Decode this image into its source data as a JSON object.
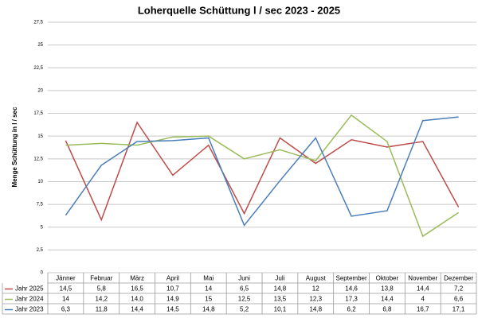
{
  "chart_data": {
    "type": "line",
    "title": "Loherquelle Schüttung l / sec 2023 - 2025",
    "y_label": "Menge Schüttung in l / sec",
    "categories": [
      "Jänner",
      "Februar",
      "März",
      "April",
      "Mai",
      "Juni",
      "Juli",
      "August",
      "September",
      "Oktober",
      "November",
      "Dezember"
    ],
    "series": [
      {
        "name": "Jahr 2025",
        "color": "#be4b48",
        "values": [
          14.5,
          5.8,
          16.5,
          10.7,
          14,
          6.5,
          14.8,
          12,
          14.6,
          13.8,
          14.4,
          7.2
        ],
        "value_labels": [
          "14,5",
          "5,8",
          "16,5",
          "10,7",
          "14",
          "6,5",
          "14,8",
          "12",
          "14,6",
          "13,8",
          "14,4",
          "7,2"
        ]
      },
      {
        "name": "Jahr 2024",
        "color": "#9bbb59",
        "values": [
          14,
          14.2,
          14,
          14.9,
          15,
          12.5,
          13.5,
          12.3,
          17.3,
          14.4,
          4,
          6.6
        ],
        "value_labels": [
          "14",
          "14,2",
          "14,0",
          "14,9",
          "15",
          "12,5",
          "13,5",
          "12,3",
          "17,3",
          "14,4",
          "4",
          "6,6"
        ]
      },
      {
        "name": "Jahr 2023",
        "color": "#4a7ebb",
        "values": [
          6.3,
          11.8,
          14.4,
          14.5,
          14.8,
          5.2,
          10.1,
          14.8,
          6.2,
          6.8,
          16.7,
          17.1
        ],
        "value_labels": [
          "6,3",
          "11,8",
          "14,4",
          "14,5",
          "14,8",
          "5,2",
          "10,1",
          "14,8",
          "6,2",
          "6,8",
          "16,7",
          "17,1"
        ]
      }
    ],
    "ylim": [
      0,
      27.5
    ],
    "yticks": [
      0,
      {
        "value": 2.5,
        "label": "2,5"
      },
      5,
      {
        "value": 7.5,
        "label": "7,5"
      },
      10,
      {
        "value": 12.5,
        "label": "12,5"
      },
      15,
      {
        "value": 17.5,
        "label": "17,5"
      },
      20,
      {
        "value": 22.5,
        "label": "22,5"
      },
      25,
      {
        "value": 27.5,
        "label": "27,5"
      }
    ],
    "grid": true
  }
}
